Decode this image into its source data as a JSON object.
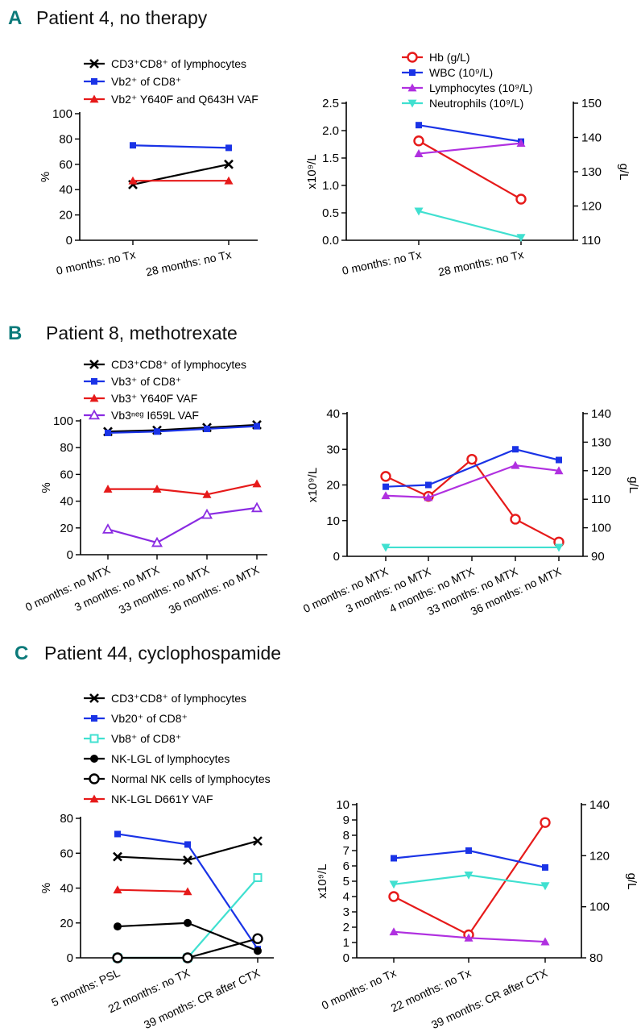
{
  "panels": [
    {
      "letter": "A",
      "title": "Patient 4, no therapy",
      "charts": [
        {
          "type": "line",
          "legend": [
            {
              "label": "CD3⁺CD8⁺ of lymphocytes",
              "color": "#000000",
              "marker": "x"
            },
            {
              "label": "Vb2⁺ of CD8⁺",
              "color": "#1a33e6",
              "marker": "square"
            },
            {
              "label": "Vb2⁺ Y640F and Q643H VAF",
              "color": "#e61a1a",
              "marker": "tri-up"
            }
          ],
          "categories": [
            "0 months: no Tx",
            "28 months: no Tx"
          ],
          "ylabel": "%",
          "ylim": [
            0,
            100
          ],
          "yticks": [
            0,
            20,
            40,
            60,
            80,
            100
          ],
          "series": [
            {
              "name": "CD3⁺CD8⁺ of lymphocytes",
              "color": "#000000",
              "marker": "x",
              "values": [
                44,
                60
              ]
            },
            {
              "name": "Vb2⁺ of CD8⁺",
              "color": "#1a33e6",
              "marker": "square",
              "values": [
                75,
                73
              ]
            },
            {
              "name": "Vb2⁺ Y640F and Q643H VAF",
              "color": "#e61a1a",
              "marker": "tri-up",
              "values": [
                47,
                47
              ]
            }
          ]
        },
        {
          "type": "line",
          "legend": [
            {
              "label": "Hb (g/L)",
              "color": "#e61a1a",
              "marker": "circle"
            },
            {
              "label": "WBC (10⁹/L)",
              "color": "#1a33e6",
              "marker": "square"
            },
            {
              "label": "Lymphocytes (10⁹/L)",
              "color": "#b030e0",
              "marker": "tri-up"
            },
            {
              "label": "Neutrophils (10⁹/L)",
              "color": "#40e0d0",
              "marker": "tri-down"
            }
          ],
          "categories": [
            "0 months: no Tx",
            "28 months: no Tx"
          ],
          "ylabel": "x10⁹/L",
          "y2label": "g/L",
          "ylim": [
            0,
            2.5
          ],
          "yticks": [
            0.0,
            0.5,
            1.0,
            1.5,
            2.0,
            2.5
          ],
          "ytick_labels": [
            "0.0",
            "0.5",
            "1.0",
            "1.5",
            "2.0",
            "2.5"
          ],
          "y2lim": [
            110,
            150
          ],
          "y2ticks": [
            110,
            120,
            130,
            140,
            150
          ],
          "series": [
            {
              "name": "Hb (g/L)",
              "axis": "right",
              "color": "#e61a1a",
              "marker": "circle",
              "values": [
                139,
                122
              ]
            },
            {
              "name": "WBC (10⁹/L)",
              "color": "#1a33e6",
              "marker": "square",
              "values": [
                2.1,
                1.8
              ]
            },
            {
              "name": "Lymphocytes (10⁹/L)",
              "color": "#b030e0",
              "marker": "tri-up",
              "values": [
                1.58,
                1.77
              ]
            },
            {
              "name": "Neutrophils (10⁹/L)",
              "color": "#40e0d0",
              "marker": "tri-down",
              "values": [
                0.53,
                0.05
              ]
            }
          ]
        }
      ]
    },
    {
      "letter": "B",
      "title": "Patient 8, methotrexate",
      "charts": [
        {
          "type": "line",
          "legend": [
            {
              "label": "CD3⁺CD8⁺ of lymphocytes",
              "color": "#000000",
              "marker": "x"
            },
            {
              "label": "Vb3⁺ of CD8⁺",
              "color": "#1a33e6",
              "marker": "square"
            },
            {
              "label": "Vb3⁺ Y640F VAF",
              "color": "#e61a1a",
              "marker": "tri-up"
            },
            {
              "label": "Vb3ⁿᵉᵍ I659L VAF",
              "color": "#8a2be2",
              "marker": "tri-up-open"
            }
          ],
          "categories": [
            "0 months: no MTX",
            "3 months: no MTX",
            "33 months: no MTX",
            "36 months: no MTX"
          ],
          "ylabel": "%",
          "ylim": [
            0,
            100
          ],
          "yticks": [
            0,
            20,
            40,
            60,
            80,
            100
          ],
          "series": [
            {
              "name": "CD3⁺CD8⁺ of lymphocytes",
              "color": "#000000",
              "marker": "x",
              "values": [
                92,
                93,
                95,
                97
              ]
            },
            {
              "name": "Vb3⁺ of CD8⁺",
              "color": "#1a33e6",
              "marker": "square",
              "values": [
                91,
                92,
                94,
                96
              ]
            },
            {
              "name": "Vb3⁺ Y640F VAF",
              "color": "#e61a1a",
              "marker": "tri-up",
              "values": [
                49,
                49,
                45,
                53
              ]
            },
            {
              "name": "Vb3ⁿᵉᵍ I659L VAF",
              "color": "#8a2be2",
              "marker": "tri-up-open",
              "values": [
                19,
                9,
                30,
                35
              ]
            }
          ]
        },
        {
          "type": "line",
          "categories": [
            "0 months: no MTX",
            "3 months: no MTX",
            "4 months: no MTX",
            "33 months: no MTX",
            "36 months: no MTX"
          ],
          "ylabel": "x10⁹/L",
          "y2label": "g/L",
          "ylim": [
            0,
            40
          ],
          "yticks": [
            0,
            10,
            20,
            30,
            40
          ],
          "y2lim": [
            90,
            140
          ],
          "y2ticks": [
            90,
            100,
            110,
            120,
            130,
            140
          ],
          "series": [
            {
              "name": "Hb (g/L)",
              "axis": "right",
              "color": "#e61a1a",
              "marker": "circle",
              "values": [
                118,
                111,
                124,
                103,
                95
              ]
            },
            {
              "name": "WBC (10⁹/L)",
              "color": "#1a33e6",
              "marker": "square",
              "values": [
                19.5,
                20,
                null,
                30,
                27
              ]
            },
            {
              "name": "Lymphocytes (10⁹/L)",
              "color": "#b030e0",
              "marker": "tri-up",
              "values": [
                17,
                16.5,
                null,
                25.5,
                24
              ]
            },
            {
              "name": "Neutrophils (10⁹/L)",
              "color": "#40e0d0",
              "marker": "tri-down",
              "values": [
                2.5,
                null,
                null,
                null,
                2.5
              ]
            }
          ]
        }
      ]
    },
    {
      "letter": "C",
      "title": "Patient 44, cyclophospamide",
      "charts": [
        {
          "type": "line",
          "legend": [
            {
              "label": "CD3⁺CD8⁺ of lymphocytes",
              "color": "#000000",
              "marker": "x"
            },
            {
              "label": "Vb20⁺ of CD8⁺",
              "color": "#1a33e6",
              "marker": "square"
            },
            {
              "label": "Vb8⁺ of CD8⁺",
              "color": "#40e0d0",
              "marker": "square-open"
            },
            {
              "label": "NK-LGL of lymphocytes",
              "color": "#000000",
              "marker": "dot"
            },
            {
              "label": "Normal NK cells of lymphocytes",
              "color": "#000000",
              "marker": "circle"
            },
            {
              "label": "NK-LGL D661Y VAF",
              "color": "#e61a1a",
              "marker": "tri-up"
            }
          ],
          "categories": [
            "5 months: PSL",
            "22 months: no TX",
            "39 months: CR after CTX"
          ],
          "ylabel": "%",
          "ylim": [
            0,
            80
          ],
          "yticks": [
            0,
            20,
            40,
            60,
            80
          ],
          "series": [
            {
              "name": "CD3⁺CD8⁺ of lymphocytes",
              "color": "#000000",
              "marker": "x",
              "values": [
                58,
                56,
                67
              ]
            },
            {
              "name": "Vb20⁺ of CD8⁺",
              "color": "#1a33e6",
              "marker": "square",
              "values": [
                71,
                65,
                5
              ]
            },
            {
              "name": "Vb8⁺ of CD8⁺",
              "color": "#40e0d0",
              "marker": "square-open",
              "values": [
                0,
                0,
                46
              ]
            },
            {
              "name": "NK-LGL of lymphocytes",
              "color": "#000000",
              "marker": "dot",
              "values": [
                18,
                20,
                4
              ]
            },
            {
              "name": "Normal NK cells of lymphocytes",
              "color": "#000000",
              "marker": "circle",
              "values": [
                0,
                0,
                11
              ]
            },
            {
              "name": "NK-LGL D661Y VAF",
              "color": "#e61a1a",
              "marker": "tri-up",
              "values": [
                39,
                38,
                null
              ]
            }
          ]
        },
        {
          "type": "line",
          "categories": [
            "0 months: no Tx",
            "22 months: no Tx",
            "39 months: CR after CTX"
          ],
          "ylabel": "x10⁹/L",
          "y2label": "g/L",
          "ylim": [
            0,
            10
          ],
          "yticks": [
            0,
            1,
            2,
            3,
            4,
            5,
            6,
            7,
            8,
            9,
            10
          ],
          "y2lim": [
            80,
            140
          ],
          "y2ticks": [
            80,
            100,
            120,
            140
          ],
          "series": [
            {
              "name": "Hb (g/L)",
              "axis": "right",
              "color": "#e61a1a",
              "marker": "circle",
              "values": [
                104,
                89,
                133
              ]
            },
            {
              "name": "WBC (10⁹/L)",
              "color": "#1a33e6",
              "marker": "square",
              "values": [
                6.5,
                7,
                5.9
              ]
            },
            {
              "name": "Lymphocytes (10⁹/L)",
              "color": "#b030e0",
              "marker": "tri-up",
              "values": [
                1.7,
                1.3,
                1.05
              ]
            },
            {
              "name": "Neutrophils (10⁹/L)",
              "color": "#40e0d0",
              "marker": "tri-down",
              "values": [
                4.8,
                5.4,
                4.7
              ]
            }
          ]
        }
      ]
    }
  ],
  "chart_data": [
    {
      "type": "line",
      "title": "Patient 4, no therapy",
      "categories": [
        "0 months: no Tx",
        "28 months: no Tx"
      ],
      "ylabel": "%",
      "ylim": [
        0,
        100
      ],
      "series": [
        {
          "name": "CD3⁺CD8⁺ of lymphocytes",
          "values": [
            44,
            60
          ]
        },
        {
          "name": "Vb2⁺ of CD8⁺",
          "values": [
            75,
            73
          ]
        },
        {
          "name": "Vb2⁺ Y640F and Q643H VAF",
          "values": [
            47,
            47
          ]
        }
      ]
    },
    {
      "type": "line",
      "title": "Patient 4, no therapy",
      "categories": [
        "0 months: no Tx",
        "28 months: no Tx"
      ],
      "ylabel": "x10⁹/L",
      "y2label": "g/L",
      "ylim": [
        0,
        2.5
      ],
      "y2lim": [
        110,
        150
      ],
      "series": [
        {
          "name": "Hb (g/L)",
          "values": [
            139,
            122
          ]
        },
        {
          "name": "WBC (10⁹/L)",
          "values": [
            2.1,
            1.8
          ]
        },
        {
          "name": "Lymphocytes (10⁹/L)",
          "values": [
            1.58,
            1.77
          ]
        },
        {
          "name": "Neutrophils (10⁹/L)",
          "values": [
            0.53,
            0.05
          ]
        }
      ]
    },
    {
      "type": "line",
      "title": "Patient 8, methotrexate",
      "categories": [
        "0 months: no MTX",
        "3 months: no MTX",
        "33 months: no MTX",
        "36 months: no MTX"
      ],
      "ylabel": "%",
      "ylim": [
        0,
        100
      ],
      "series": [
        {
          "name": "CD3⁺CD8⁺ of lymphocytes",
          "values": [
            92,
            93,
            95,
            97
          ]
        },
        {
          "name": "Vb3⁺ of CD8⁺",
          "values": [
            91,
            92,
            94,
            96
          ]
        },
        {
          "name": "Vb3⁺ Y640F VAF",
          "values": [
            49,
            49,
            45,
            53
          ]
        },
        {
          "name": "Vb3ⁿᵉᵍ I659L VAF",
          "values": [
            19,
            9,
            30,
            35
          ]
        }
      ]
    },
    {
      "type": "line",
      "title": "Patient 8, methotrexate",
      "categories": [
        "0 months: no MTX",
        "3 months: no MTX",
        "4 months: no MTX",
        "33 months: no MTX",
        "36 months: no MTX"
      ],
      "ylabel": "x10⁹/L",
      "y2label": "g/L",
      "ylim": [
        0,
        40
      ],
      "y2lim": [
        90,
        140
      ],
      "series": [
        {
          "name": "Hb (g/L)",
          "values": [
            118,
            111,
            124,
            103,
            95
          ]
        },
        {
          "name": "WBC (10⁹/L)",
          "values": [
            19.5,
            20,
            null,
            30,
            27
          ]
        },
        {
          "name": "Lymphocytes (10⁹/L)",
          "values": [
            17,
            16.5,
            null,
            25.5,
            24
          ]
        },
        {
          "name": "Neutrophils (10⁹/L)",
          "values": [
            2.5,
            null,
            null,
            null,
            2.5
          ]
        }
      ]
    },
    {
      "type": "line",
      "title": "Patient 44, cyclophospamide",
      "categories": [
        "5 months: PSL",
        "22 months: no TX",
        "39 months: CR after CTX"
      ],
      "ylabel": "%",
      "ylim": [
        0,
        80
      ],
      "series": [
        {
          "name": "CD3⁺CD8⁺ of lymphocytes",
          "values": [
            58,
            56,
            67
          ]
        },
        {
          "name": "Vb20⁺ of CD8⁺",
          "values": [
            71,
            65,
            5
          ]
        },
        {
          "name": "Vb8⁺ of CD8⁺",
          "values": [
            0,
            0,
            46
          ]
        },
        {
          "name": "NK-LGL of lymphocytes",
          "values": [
            18,
            20,
            4
          ]
        },
        {
          "name": "Normal NK cells of lymphocytes",
          "values": [
            0,
            0,
            11
          ]
        },
        {
          "name": "NK-LGL D661Y VAF",
          "values": [
            39,
            38,
            null
          ]
        }
      ]
    },
    {
      "type": "line",
      "title": "Patient 44, cyclophospamide",
      "categories": [
        "0 months: no Tx",
        "22 months: no Tx",
        "39 months: CR after CTX"
      ],
      "ylabel": "x10⁹/L",
      "y2label": "g/L",
      "ylim": [
        0,
        10
      ],
      "y2lim": [
        80,
        140
      ],
      "series": [
        {
          "name": "Hb (g/L)",
          "values": [
            104,
            89,
            133
          ]
        },
        {
          "name": "WBC (10⁹/L)",
          "values": [
            6.5,
            7,
            5.9
          ]
        },
        {
          "name": "Lymphocytes (10⁹/L)",
          "values": [
            1.7,
            1.3,
            1.05
          ]
        },
        {
          "name": "Neutrophils (10⁹/L)",
          "values": [
            4.8,
            5.4,
            4.7
          ]
        }
      ]
    }
  ]
}
